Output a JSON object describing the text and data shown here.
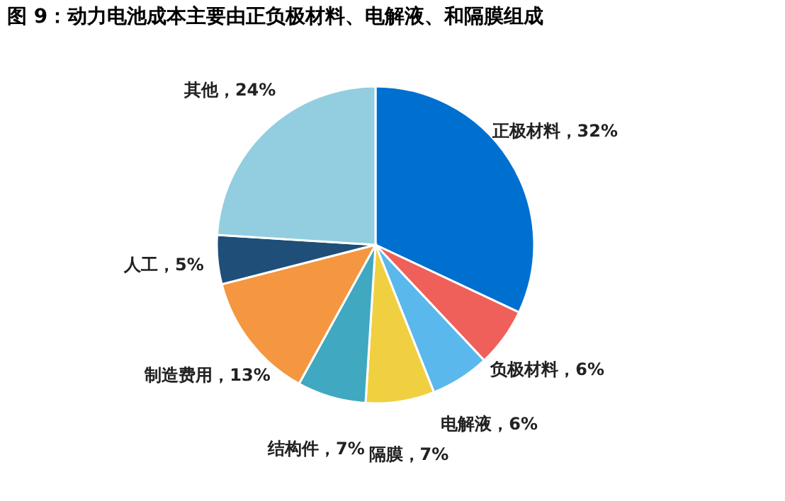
{
  "chart_data": {
    "type": "pie",
    "title": "图 9：动力电池成本主要由正负极材料、电解液、和隔膜组成",
    "categories": [
      "正极材料",
      "负极材料",
      "电解液",
      "隔膜",
      "结构件",
      "制造费用",
      "人工",
      "其他"
    ],
    "values": [
      32,
      6,
      6,
      7,
      7,
      13,
      5,
      24
    ],
    "value_labels": [
      "32%",
      "6%",
      "6%",
      "7%",
      "7%",
      "13%",
      "5%",
      "24%"
    ],
    "colors": [
      "#0070d0",
      "#f0605a",
      "#5bb8ec",
      "#f0d040",
      "#40a8c0",
      "#f59640",
      "#1f4e79",
      "#93cde0"
    ],
    "legend": false
  }
}
